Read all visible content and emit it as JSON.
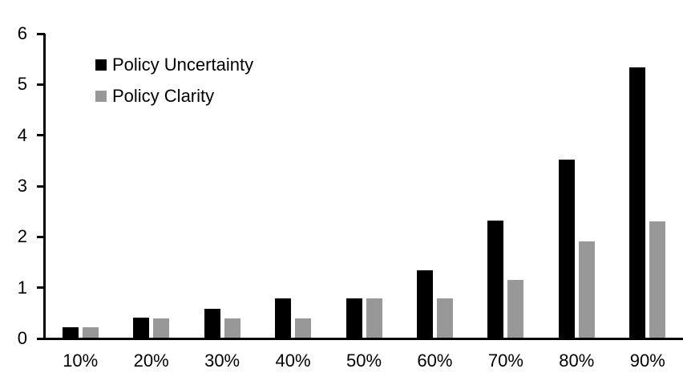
{
  "chart_data": {
    "type": "bar",
    "categories": [
      "10%",
      "20%",
      "30%",
      "40%",
      "50%",
      "60%",
      "70%",
      "80%",
      "90%"
    ],
    "series": [
      {
        "name": "Policy Uncertainty",
        "color": "#000000",
        "values": [
          0.2,
          0.39,
          0.57,
          0.77,
          0.78,
          1.33,
          2.31,
          3.5,
          5.32
        ]
      },
      {
        "name": "Policy Clarity",
        "color": "#989898",
        "values": [
          0.2,
          0.38,
          0.38,
          0.38,
          0.77,
          0.77,
          1.14,
          1.89,
          2.29
        ]
      }
    ],
    "title": "",
    "xlabel": "",
    "ylabel": "",
    "ylim": [
      0,
      6
    ],
    "yticks": [
      0,
      1,
      2,
      3,
      4,
      5,
      6
    ],
    "grid": false,
    "legend_position": "inside-top-left",
    "axis_color": "#000000"
  }
}
